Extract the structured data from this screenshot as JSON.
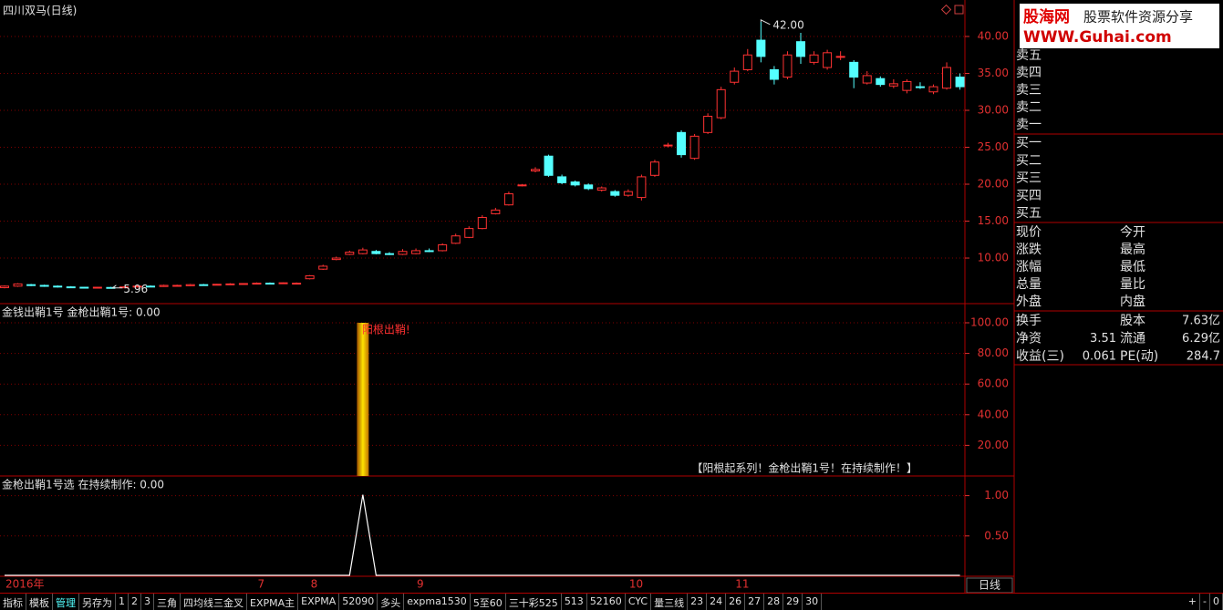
{
  "window_title": "四川双马(日线)",
  "logo": {
    "name": "股海网",
    "slogan": "股票软件资源分享",
    "url": "WWW.Guhai.com"
  },
  "order_book": {
    "sell": [
      "卖五",
      "卖四",
      "卖三",
      "卖二",
      "卖一"
    ],
    "buy": [
      "买一",
      "买二",
      "买三",
      "买四",
      "买五"
    ]
  },
  "quote": [
    [
      "现价",
      "今开"
    ],
    [
      "涨跌",
      "最高"
    ],
    [
      "涨幅",
      "最低"
    ],
    [
      "总量",
      "量比"
    ],
    [
      "外盘",
      "内盘"
    ]
  ],
  "fundamentals": [
    [
      {
        "label": "换手"
      },
      {
        "label": "股本",
        "value": "7.63亿"
      }
    ],
    [
      {
        "label": "净资",
        "value": "3.51"
      },
      {
        "label": "流通",
        "value": "6.29亿"
      }
    ],
    [
      {
        "label": "收益(三)",
        "value": "0.061"
      },
      {
        "label": "PE(动)",
        "value": "284.7"
      }
    ]
  ],
  "period": "日线",
  "toolbar": [
    "指标",
    "模板",
    "管理",
    "另存为",
    "1",
    "2",
    "3",
    "三角",
    "四均线三金叉",
    "EXPMA主",
    "EXPMA",
    "52090",
    "多头",
    "expma1530",
    "5至60",
    "三十彩525",
    "513",
    "52160",
    "CYC",
    "量三线",
    "23",
    "24",
    "26",
    "27",
    "28",
    "29",
    "30"
  ],
  "toolbar_controls": [
    "+",
    "-",
    "0"
  ],
  "chart_data": [
    {
      "type": "candlestick",
      "categories": [
        "2016年",
        null,
        null,
        null,
        null,
        null,
        null,
        null,
        null,
        null,
        null,
        null,
        null,
        null,
        null,
        null,
        null,
        null,
        null,
        "7",
        null,
        null,
        null,
        "8",
        null,
        null,
        null,
        null,
        null,
        null,
        null,
        "9",
        null,
        null,
        null,
        null,
        null,
        null,
        null,
        null,
        null,
        null,
        null,
        null,
        null,
        null,
        null,
        "10",
        null,
        null,
        null,
        null,
        null,
        null,
        null,
        "11",
        null,
        null,
        null,
        null,
        null,
        null,
        null,
        null,
        null,
        null,
        null,
        null,
        null,
        null,
        null,
        null,
        null
      ],
      "open": [
        6.0,
        6.2,
        6.4,
        6.3,
        6.2,
        6.1,
        6.05,
        6.0,
        6.02,
        6.0,
        6.1,
        6.2,
        6.15,
        6.2,
        6.25,
        6.4,
        6.35,
        6.4,
        6.45,
        6.5,
        6.6,
        6.55,
        6.5,
        7.2,
        8.5,
        9.8,
        10.5,
        10.6,
        10.9,
        10.6,
        10.5,
        10.6,
        11.0,
        11.0,
        12.0,
        12.8,
        14.0,
        16.0,
        17.2,
        19.8,
        21.8,
        23.8,
        21.0,
        20.3,
        19.9,
        19.2,
        19.0,
        18.5,
        18.2,
        21.2,
        25.2,
        27.0,
        23.5,
        27.0,
        29.0,
        33.8,
        35.5,
        39.5,
        35.5,
        34.5,
        39.3,
        36.5,
        35.8,
        37.2,
        36.5,
        33.7,
        34.3,
        33.3,
        32.7,
        33.2,
        32.5,
        33.0,
        34.5
      ],
      "high": [
        6.3,
        6.6,
        6.5,
        6.4,
        6.3,
        6.2,
        6.1,
        6.1,
        6.1,
        6.2,
        6.3,
        6.3,
        6.4,
        6.4,
        6.5,
        6.5,
        6.5,
        6.6,
        6.6,
        6.7,
        6.7,
        6.7,
        6.7,
        7.7,
        9.1,
        10.2,
        11.0,
        11.4,
        11.1,
        10.8,
        11.2,
        11.3,
        11.3,
        12.0,
        13.3,
        14.3,
        15.8,
        16.8,
        19.0,
        20.0,
        22.3,
        24.0,
        21.3,
        20.5,
        20.1,
        19.7,
        19.2,
        19.3,
        21.3,
        23.3,
        25.6,
        27.3,
        26.8,
        29.6,
        33.2,
        35.8,
        38.3,
        42.0,
        36.0,
        38.0,
        40.5,
        38.0,
        38.2,
        38.0,
        36.8,
        35.3,
        34.6,
        34.2,
        34.2,
        33.8,
        33.5,
        36.5,
        35.0
      ],
      "low": [
        5.9,
        6.1,
        6.2,
        6.1,
        6.0,
        5.97,
        5.97,
        5.97,
        5.96,
        5.97,
        6.05,
        6.1,
        6.1,
        6.15,
        6.2,
        6.3,
        6.3,
        6.35,
        6.4,
        6.45,
        6.5,
        6.5,
        6.45,
        7.1,
        8.4,
        9.7,
        10.4,
        10.5,
        10.5,
        10.4,
        10.4,
        10.5,
        10.8,
        10.9,
        11.9,
        12.7,
        13.9,
        15.9,
        17.1,
        19.7,
        21.6,
        21.0,
        20.0,
        19.7,
        19.2,
        19.0,
        18.3,
        18.3,
        17.8,
        21.0,
        25.0,
        23.6,
        23.3,
        26.8,
        28.8,
        33.5,
        35.3,
        36.5,
        33.5,
        34.2,
        36.3,
        36.2,
        35.5,
        36.8,
        33.0,
        33.5,
        33.2,
        33.0,
        32.3,
        32.9,
        32.2,
        32.8,
        32.8
      ],
      "close": [
        6.2,
        6.5,
        6.3,
        6.2,
        6.1,
        6.0,
        6.0,
        6.05,
        5.98,
        6.1,
        6.2,
        6.15,
        6.3,
        6.3,
        6.4,
        6.35,
        6.45,
        6.5,
        6.55,
        6.6,
        6.55,
        6.65,
        6.6,
        7.6,
        8.9,
        10.0,
        10.8,
        11.1,
        10.6,
        10.5,
        10.9,
        11.0,
        10.9,
        11.8,
        13.0,
        14.0,
        15.5,
        16.5,
        18.7,
        19.9,
        22.0,
        21.2,
        20.2,
        19.9,
        19.4,
        19.5,
        18.5,
        19.0,
        21.0,
        23.0,
        25.3,
        24.0,
        26.5,
        29.2,
        32.8,
        35.3,
        37.5,
        37.3,
        34.2,
        37.5,
        37.3,
        37.5,
        37.8,
        37.3,
        34.5,
        34.7,
        33.5,
        33.6,
        33.9,
        33.1,
        33.2,
        35.8,
        33.2
      ],
      "up_color": "#ff3232",
      "down_color": "#54ffff",
      "max_label": {
        "value": 42.0,
        "label": "42.00"
      },
      "min_label": {
        "value": 5.96,
        "label": "5.96"
      },
      "ylim": [
        3.83,
        44.94
      ],
      "yticks": [
        {
          "value": 10,
          "label": "10.00"
        },
        {
          "value": 15,
          "label": "15.00"
        },
        {
          "value": 20,
          "label": "20.00"
        },
        {
          "value": 25,
          "label": "25.00"
        },
        {
          "value": 30,
          "label": "30.00"
        },
        {
          "value": 35,
          "label": "35.00"
        },
        {
          "value": 40,
          "label": "40.00"
        }
      ],
      "grid": true
    },
    {
      "type": "bar",
      "title": "金钱出鞘1号 金枪出鞘1号: 0.00",
      "values": [
        0,
        0,
        0,
        0,
        0,
        0,
        0,
        0,
        0,
        0,
        0,
        0,
        0,
        0,
        0,
        0,
        0,
        0,
        0,
        0,
        0,
        0,
        0,
        0,
        0,
        0,
        0,
        100,
        0,
        0,
        0,
        0,
        0,
        0,
        0,
        0,
        0,
        0,
        0,
        0,
        0,
        0,
        0,
        0,
        0,
        0,
        0,
        0,
        0,
        0,
        0,
        0,
        0,
        0,
        0,
        0,
        0,
        0,
        0,
        0,
        0,
        0,
        0,
        0,
        0,
        0,
        0,
        0,
        0,
        0,
        0,
        0,
        0
      ],
      "colors": [
        "#a05000",
        "#ffe400",
        "#c07000"
      ],
      "annotation": "阳根出鞘!",
      "note": "【阳根起系列！金枪出鞘1号！在持续制作！】",
      "ylim": [
        0,
        112.5
      ],
      "yticks": [
        {
          "value": 20,
          "label": "20.00"
        },
        {
          "value": 40,
          "label": "40.00"
        },
        {
          "value": 60,
          "label": "60.00"
        },
        {
          "value": 80,
          "label": "80.00"
        },
        {
          "value": 100,
          "label": "100.00"
        }
      ],
      "grid": true
    },
    {
      "type": "line",
      "title": "金枪出鞘1号选 在持续制作: 0.00",
      "values": [
        0,
        0,
        0,
        0,
        0,
        0,
        0,
        0,
        0,
        0,
        0,
        0,
        0,
        0,
        0,
        0,
        0,
        0,
        0,
        0,
        0,
        0,
        0,
        0,
        0,
        0,
        0,
        1,
        0,
        0,
        0,
        0,
        0,
        0,
        0,
        0,
        0,
        0,
        0,
        0,
        0,
        0,
        0,
        0,
        0,
        0,
        0,
        0,
        0,
        0,
        0,
        0,
        0,
        0,
        0,
        0,
        0,
        0,
        0,
        0,
        0,
        0,
        0,
        0,
        0,
        0,
        0,
        0,
        0,
        0,
        0,
        0,
        0
      ],
      "color": "#ffffff",
      "ylim": [
        0,
        1.244
      ],
      "yticks": [
        {
          "value": 0.5,
          "label": "0.50"
        },
        {
          "value": 1.0,
          "label": "1.00"
        }
      ],
      "grid": true
    }
  ]
}
